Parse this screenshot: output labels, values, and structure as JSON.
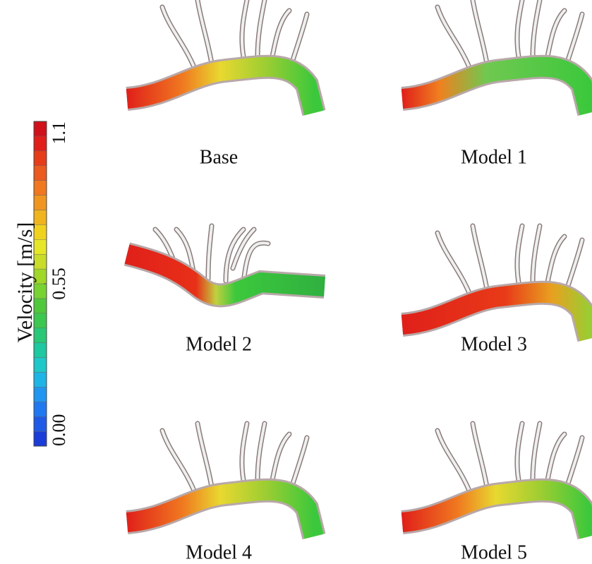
{
  "colorbar": {
    "title": "Velocity [m/s]",
    "lim": [
      0,
      1.1
    ],
    "ticks": [
      {
        "value": 0,
        "label": "0.00"
      },
      0.55,
      1.1
    ]
  },
  "panels": [
    {
      "label": "Base"
    },
    {
      "label": "Model 1"
    },
    {
      "label": "Model 2"
    },
    {
      "label": "Model 3"
    },
    {
      "label": "Model 4"
    },
    {
      "label": "Model 5"
    }
  ]
}
